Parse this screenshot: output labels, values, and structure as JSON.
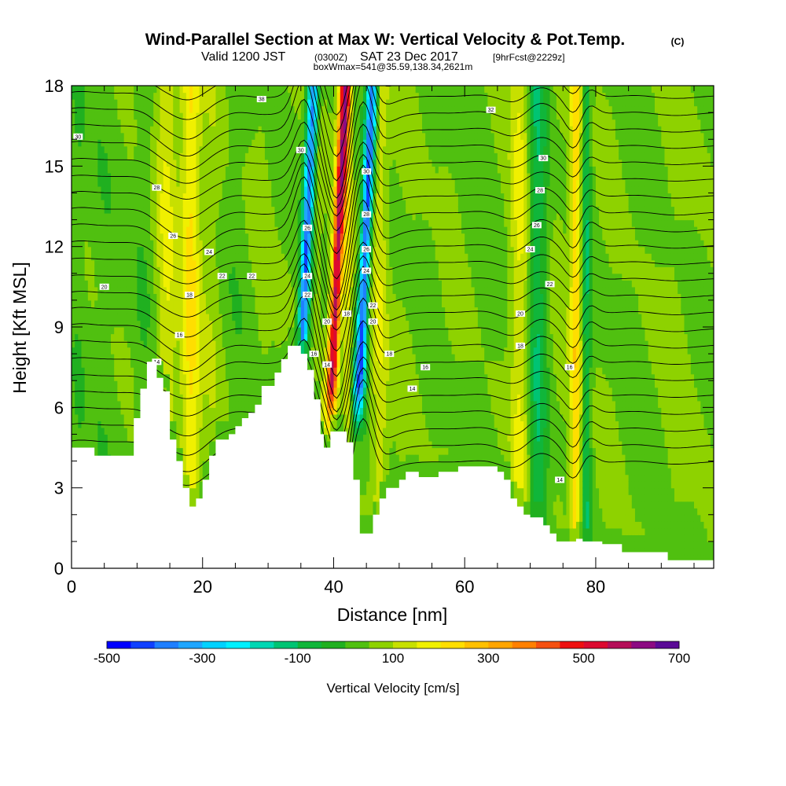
{
  "chart_data": {
    "type": "heatmap",
    "title": "Wind-Parallel Section at Max W: Vertical Velocity & Pot.Temp.",
    "title_mark": "(C)",
    "subtitle_parts": [
      "Valid 1200 JST",
      "(0300Z)",
      "SAT 23 Dec 2017",
      "[9hrFcst@2229z]"
    ],
    "subtitle2": "boxWmax=541@35.59,138.34,2621m",
    "xlabel": "Distance [nm]",
    "ylabel": "Height [Kft MSL]",
    "xlim": [
      0,
      98
    ],
    "ylim": [
      0,
      18
    ],
    "xticks": [
      0,
      20,
      40,
      60,
      80
    ],
    "yticks": [
      0,
      3,
      6,
      9,
      12,
      15,
      18
    ],
    "colorbar": {
      "title": "Vertical Velocity [cm/s]",
      "min": -500,
      "max": 700,
      "step": 50,
      "tick_labels": [
        -500,
        -300,
        -100,
        100,
        300,
        500,
        700
      ],
      "colors": [
        "#0000ff",
        "#1040ff",
        "#1f7fff",
        "#1fa6ff",
        "#00d2ff",
        "#00f0ff",
        "#00d7b3",
        "#00c473",
        "#10b63a",
        "#20b020",
        "#50c010",
        "#8ed200",
        "#c7e000",
        "#f0f000",
        "#ffde00",
        "#ffc000",
        "#ffa500",
        "#ff8000",
        "#f55010",
        "#ee1010",
        "#dc0a30",
        "#b40e58",
        "#8c0a82",
        "#5a0a96"
      ]
    },
    "terrain_kft": [
      [
        0,
        4.5
      ],
      [
        3.5,
        4.5
      ],
      [
        3.5,
        4.2
      ],
      [
        9.5,
        4.2
      ],
      [
        9.5,
        5.6
      ],
      [
        10.5,
        5.6
      ],
      [
        10.5,
        6.7
      ],
      [
        11.5,
        6.7
      ],
      [
        11.5,
        7.7
      ],
      [
        13,
        7.7
      ],
      [
        13,
        7.1
      ],
      [
        14,
        7.1
      ],
      [
        14,
        6.6
      ],
      [
        15,
        6.6
      ],
      [
        15,
        4.8
      ],
      [
        16,
        4.8
      ],
      [
        16,
        4.0
      ],
      [
        17,
        4.0
      ],
      [
        17,
        3.0
      ],
      [
        18,
        3.0
      ],
      [
        18,
        2.3
      ],
      [
        19,
        2.3
      ],
      [
        19,
        2.6
      ],
      [
        20,
        2.6
      ],
      [
        20,
        3.3
      ],
      [
        21,
        3.3
      ],
      [
        21,
        4.2
      ],
      [
        22,
        4.2
      ],
      [
        22,
        4.8
      ],
      [
        24,
        4.8
      ],
      [
        24,
        5.0
      ],
      [
        25,
        5.0
      ],
      [
        25,
        5.3
      ],
      [
        26,
        5.3
      ],
      [
        26,
        5.6
      ],
      [
        27,
        5.6
      ],
      [
        27,
        5.8
      ],
      [
        28,
        5.8
      ],
      [
        28,
        6.1
      ],
      [
        29,
        6.1
      ],
      [
        29,
        6.8
      ],
      [
        31,
        6.8
      ],
      [
        31,
        7.3
      ],
      [
        32,
        7.3
      ],
      [
        32,
        7.8
      ],
      [
        33,
        7.8
      ],
      [
        33,
        8.3
      ],
      [
        35,
        8.3
      ],
      [
        35,
        8.0
      ],
      [
        36,
        8.0
      ],
      [
        36,
        7.4
      ],
      [
        37,
        7.4
      ],
      [
        37,
        6.3
      ],
      [
        38,
        6.3
      ],
      [
        38,
        5.0
      ],
      [
        38.5,
        5.0
      ],
      [
        38.5,
        4.5
      ],
      [
        39.5,
        4.5
      ],
      [
        39.5,
        5.1
      ],
      [
        42,
        5.1
      ],
      [
        42,
        4.7
      ],
      [
        43,
        4.7
      ],
      [
        43,
        3.3
      ],
      [
        44,
        3.3
      ],
      [
        44,
        1.3
      ],
      [
        46,
        1.3
      ],
      [
        46,
        2.0
      ],
      [
        47,
        2.0
      ],
      [
        47,
        2.6
      ],
      [
        48,
        2.6
      ],
      [
        48,
        3.0
      ],
      [
        50,
        3.0
      ],
      [
        50,
        3.3
      ],
      [
        51,
        3.3
      ],
      [
        51,
        3.6
      ],
      [
        53,
        3.6
      ],
      [
        53,
        3.4
      ],
      [
        56,
        3.4
      ],
      [
        56,
        3.6
      ],
      [
        59,
        3.6
      ],
      [
        59,
        3.8
      ],
      [
        65,
        3.8
      ],
      [
        65,
        3.6
      ],
      [
        66,
        3.6
      ],
      [
        66,
        3.3
      ],
      [
        67,
        3.3
      ],
      [
        67,
        2.6
      ],
      [
        68,
        2.6
      ],
      [
        68,
        2.3
      ],
      [
        69,
        2.3
      ],
      [
        69,
        2.0
      ],
      [
        70,
        2.0
      ],
      [
        70,
        1.9
      ],
      [
        72,
        1.9
      ],
      [
        72,
        1.6
      ],
      [
        73,
        1.6
      ],
      [
        73,
        1.3
      ],
      [
        74,
        1.3
      ],
      [
        74,
        1.0
      ],
      [
        76,
        1.0
      ],
      [
        76,
        1.0
      ],
      [
        77,
        1.0
      ],
      [
        77,
        1.1
      ],
      [
        78,
        1.1
      ],
      [
        78,
        1.0
      ],
      [
        81,
        1.0
      ],
      [
        81,
        0.9
      ],
      [
        84,
        0.9
      ],
      [
        84,
        0.6
      ],
      [
        91,
        0.6
      ],
      [
        91,
        0.3
      ],
      [
        98,
        0.3
      ]
    ],
    "w_features": [
      {
        "x": 1.0,
        "sx": 1.2,
        "w": -25
      },
      {
        "x": 5.0,
        "sx": 2.2,
        "w": -20
      },
      {
        "x": 11.0,
        "sx": 1.4,
        "w": -30
      },
      {
        "x": 14.5,
        "sx": 1.6,
        "w": 110
      },
      {
        "x": 18.2,
        "sx": 1.5,
        "w": 170
      },
      {
        "x": 21.5,
        "sx": 1.6,
        "w": 45
      },
      {
        "x": 25.0,
        "sx": 2.2,
        "w": -20
      },
      {
        "x": 29.0,
        "sx": 1.6,
        "w": 30
      },
      {
        "x": 35.5,
        "sx": 0.9,
        "w": -430
      },
      {
        "x": 37.6,
        "sx": 0.8,
        "w": 40
      },
      {
        "x": 40.3,
        "sx": 0.9,
        "w": 540
      },
      {
        "x": 42.1,
        "sx": 0.7,
        "w": 120
      },
      {
        "x": 44.5,
        "sx": 0.9,
        "w": -460
      },
      {
        "x": 47.0,
        "sx": 1.3,
        "w": 100
      },
      {
        "x": 51.0,
        "sx": 1.8,
        "w": 20
      },
      {
        "x": 55.0,
        "sx": 2.0,
        "w": -10
      },
      {
        "x": 58.0,
        "sx": 2.0,
        "w": 20
      },
      {
        "x": 63.0,
        "sx": 2.3,
        "w": -15
      },
      {
        "x": 68.5,
        "sx": 1.6,
        "w": 120
      },
      {
        "x": 71.0,
        "sx": 1.5,
        "w": -140
      },
      {
        "x": 74.5,
        "sx": 1.4,
        "w": 25
      },
      {
        "x": 77.0,
        "sx": 0.9,
        "w": 200
      },
      {
        "x": 78.5,
        "sx": 0.8,
        "w": -140
      },
      {
        "x": 82.0,
        "sx": 1.8,
        "w": 15
      },
      {
        "x": 86.0,
        "sx": 1.8,
        "w": -10
      },
      {
        "x": 92.0,
        "sx": 2.2,
        "w": 30
      }
    ],
    "contour_labels": [
      {
        "text": "30",
        "x": 1.0,
        "y": 16.1
      },
      {
        "text": "38",
        "x": 29.0,
        "y": 17.5
      },
      {
        "text": "32",
        "x": 64.0,
        "y": 17.1
      },
      {
        "text": "30",
        "x": 35.0,
        "y": 15.6
      },
      {
        "text": "30",
        "x": 45.0,
        "y": 14.8
      },
      {
        "text": "30",
        "x": 72.0,
        "y": 15.3
      },
      {
        "text": "28",
        "x": 13.0,
        "y": 14.2
      },
      {
        "text": "28",
        "x": 45.0,
        "y": 13.2
      },
      {
        "text": "28",
        "x": 71.5,
        "y": 14.1
      },
      {
        "text": "26",
        "x": 15.5,
        "y": 12.4
      },
      {
        "text": "26",
        "x": 36.0,
        "y": 12.7
      },
      {
        "text": "26",
        "x": 45.0,
        "y": 11.9
      },
      {
        "text": "26",
        "x": 71.0,
        "y": 12.8
      },
      {
        "text": "24",
        "x": 21.0,
        "y": 11.8
      },
      {
        "text": "24",
        "x": 36.0,
        "y": 10.9
      },
      {
        "text": "24",
        "x": 45.0,
        "y": 11.1
      },
      {
        "text": "24",
        "x": 70.0,
        "y": 11.9
      },
      {
        "text": "22",
        "x": 23.0,
        "y": 10.9
      },
      {
        "text": "22",
        "x": 27.5,
        "y": 10.9
      },
      {
        "text": "22",
        "x": 36.0,
        "y": 10.2
      },
      {
        "text": "22",
        "x": 46.0,
        "y": 9.8
      },
      {
        "text": "22",
        "x": 73.0,
        "y": 10.6
      },
      {
        "text": "20",
        "x": 5.0,
        "y": 10.5
      },
      {
        "text": "20",
        "x": 39.0,
        "y": 9.2
      },
      {
        "text": "20",
        "x": 46.0,
        "y": 9.2
      },
      {
        "text": "20",
        "x": 68.5,
        "y": 9.5
      },
      {
        "text": "18",
        "x": 18.0,
        "y": 10.2
      },
      {
        "text": "18",
        "x": 42.0,
        "y": 9.5
      },
      {
        "text": "18",
        "x": 48.5,
        "y": 8.0
      },
      {
        "text": "18",
        "x": 68.5,
        "y": 8.3
      },
      {
        "text": "16",
        "x": 16.5,
        "y": 8.7
      },
      {
        "text": "16",
        "x": 37.0,
        "y": 8.0
      },
      {
        "text": "16",
        "x": 54.0,
        "y": 7.5
      },
      {
        "text": "16",
        "x": 76.0,
        "y": 7.5
      },
      {
        "text": "14",
        "x": 13.0,
        "y": 7.7
      },
      {
        "text": "14",
        "x": 39.0,
        "y": 7.6
      },
      {
        "text": "14",
        "x": 52.0,
        "y": 6.7
      },
      {
        "text": "14",
        "x": 74.5,
        "y": 3.3
      }
    ],
    "theta_levels": [
      14,
      15,
      16,
      17,
      18,
      19,
      20,
      21,
      22,
      23,
      24,
      25,
      26,
      27,
      28,
      29,
      30,
      31,
      32,
      33,
      34,
      35,
      36,
      37,
      38
    ]
  }
}
